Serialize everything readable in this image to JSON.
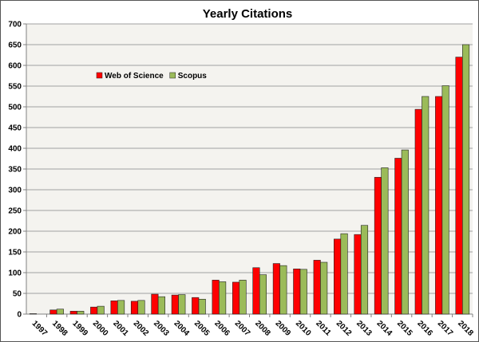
{
  "chart_data": {
    "type": "bar",
    "title": "Yearly Citations",
    "xlabel": "",
    "ylabel": "",
    "ylim": [
      0,
      700
    ],
    "yticks": [
      0,
      50,
      100,
      150,
      200,
      250,
      300,
      350,
      400,
      450,
      500,
      550,
      600,
      650,
      700
    ],
    "grid": true,
    "legend_position": "top-left",
    "categories": [
      "1997",
      "1998",
      "1999",
      "2000",
      "2001",
      "2002",
      "2003",
      "2004",
      "2005",
      "2006",
      "2007",
      "2008",
      "2009",
      "2010",
      "2011",
      "2012",
      "2013",
      "2014",
      "2015",
      "2016",
      "2017",
      "2018"
    ],
    "series": [
      {
        "name": "Web of Science",
        "color": "#ff0000",
        "values": [
          1,
          10,
          7,
          17,
          32,
          31,
          48,
          46,
          40,
          82,
          77,
          112,
          122,
          109,
          130,
          181,
          192,
          330,
          376,
          494,
          525,
          620
        ]
      },
      {
        "name": "Scopus",
        "color": "#9bbb59",
        "values": [
          0,
          12,
          7,
          19,
          33,
          33,
          42,
          47,
          36,
          78,
          82,
          95,
          117,
          108,
          125,
          194,
          214,
          353,
          396,
          525,
          551,
          650
        ]
      }
    ]
  }
}
